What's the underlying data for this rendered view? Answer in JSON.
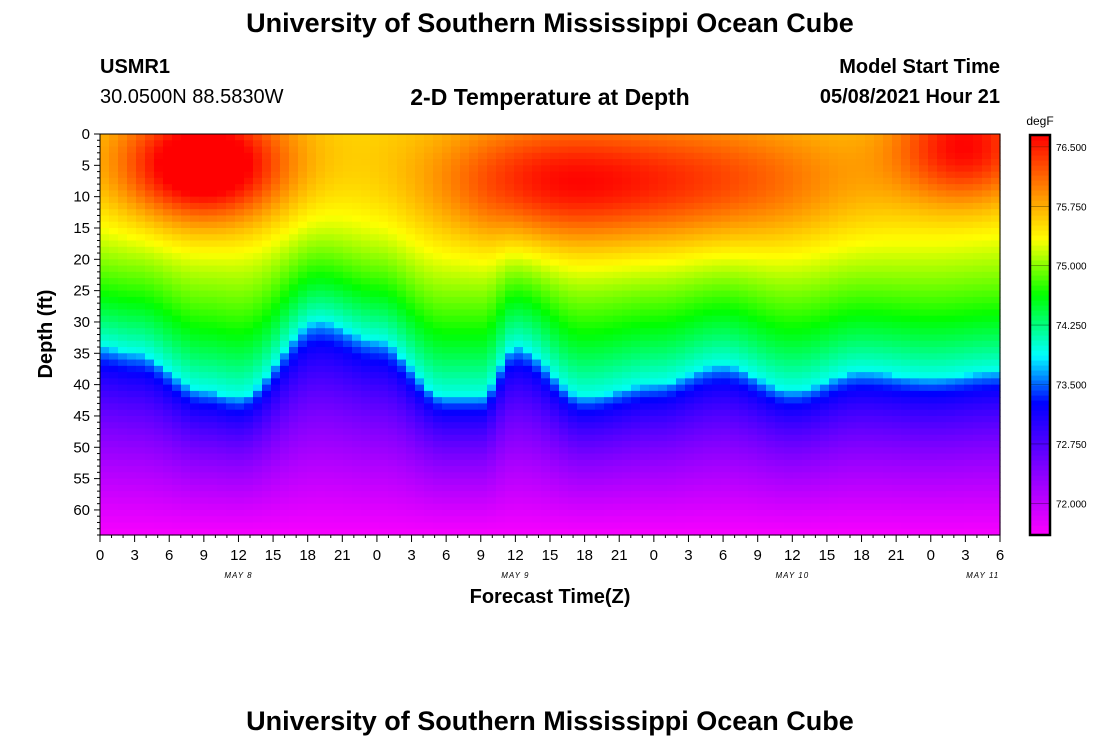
{
  "header": {
    "title": "University of Southern Mississippi Ocean Cube",
    "station_id": "USMR1",
    "coordinates": "30.0500N  88.5830W",
    "plot_title": "2-D Temperature at Depth",
    "model_start_label": "Model Start Time",
    "model_start_value": "05/08/2021 Hour 21"
  },
  "footer": {
    "title": "University of Southern Mississippi Ocean Cube"
  },
  "colors": {
    "magenta": "#ff00ff",
    "purple": "#7f00ff",
    "blue": "#0000ff",
    "cyan": "#00ffff",
    "green": "#00ff00",
    "yellow": "#ffff00",
    "orange": "#ff8000",
    "red": "#ff0000"
  },
  "chart_data": {
    "type": "heatmap",
    "ylabel": "Depth (ft)",
    "xlabel": "Forecast Time(Z)",
    "ylim": [
      0,
      64
    ],
    "y_ticks": [
      "0",
      "5",
      "10",
      "15",
      "20",
      "25",
      "30",
      "35",
      "40",
      "45",
      "50",
      "55",
      "60"
    ],
    "x_ticks": [
      "0",
      "3",
      "6",
      "9",
      "12",
      "15",
      "18",
      "21",
      "0",
      "3",
      "6",
      "9",
      "12",
      "15",
      "18",
      "21",
      "0",
      "3",
      "6",
      "9",
      "12",
      "15",
      "18",
      "21",
      "0",
      "3",
      "6"
    ],
    "date_labels": [
      {
        "label": "MAY 8",
        "hour": 12
      },
      {
        "label": "MAY 9",
        "hour": 36
      },
      {
        "label": "MAY 10",
        "hour": 60
      },
      {
        "label": "MAY 11",
        "hour": 76.5
      }
    ],
    "hours_range": [
      0,
      78
    ],
    "colorbar": {
      "unit": "degF",
      "ticks": [
        "76.500",
        "75.750",
        "75.000",
        "74.250",
        "73.500",
        "72.750",
        "72.000"
      ],
      "tick_values": [
        76.5,
        75.75,
        75.0,
        74.25,
        73.5,
        72.75,
        72.0
      ],
      "range": [
        71.6,
        76.65
      ]
    },
    "thermocline_depth_ft": {
      "hours": [
        0,
        3,
        9,
        12,
        19,
        24,
        30,
        33,
        36,
        42,
        48,
        54,
        60,
        66,
        72,
        78
      ],
      "values": [
        34,
        35,
        41,
        42,
        30,
        33,
        42,
        42,
        34,
        42,
        40,
        37,
        41,
        38,
        39,
        38
      ]
    },
    "surface_warm_core": [
      {
        "hour": 9,
        "depth": 5,
        "amplitude": 1.6,
        "width_h": 7,
        "width_ft": 9
      },
      {
        "hour": 38,
        "depth": 8,
        "amplitude": 0.8,
        "width_h": 10,
        "width_ft": 10
      },
      {
        "hour": 52,
        "depth": 8,
        "amplitude": 0.8,
        "width_h": 14,
        "width_ft": 10
      },
      {
        "hour": 75,
        "depth": 2,
        "amplitude": 1.1,
        "width_h": 6,
        "width_ft": 9
      }
    ],
    "temperature_profile": {
      "above_thermocline": 75.5,
      "at_thermocline": 73.9,
      "bottom": 71.65
    }
  }
}
